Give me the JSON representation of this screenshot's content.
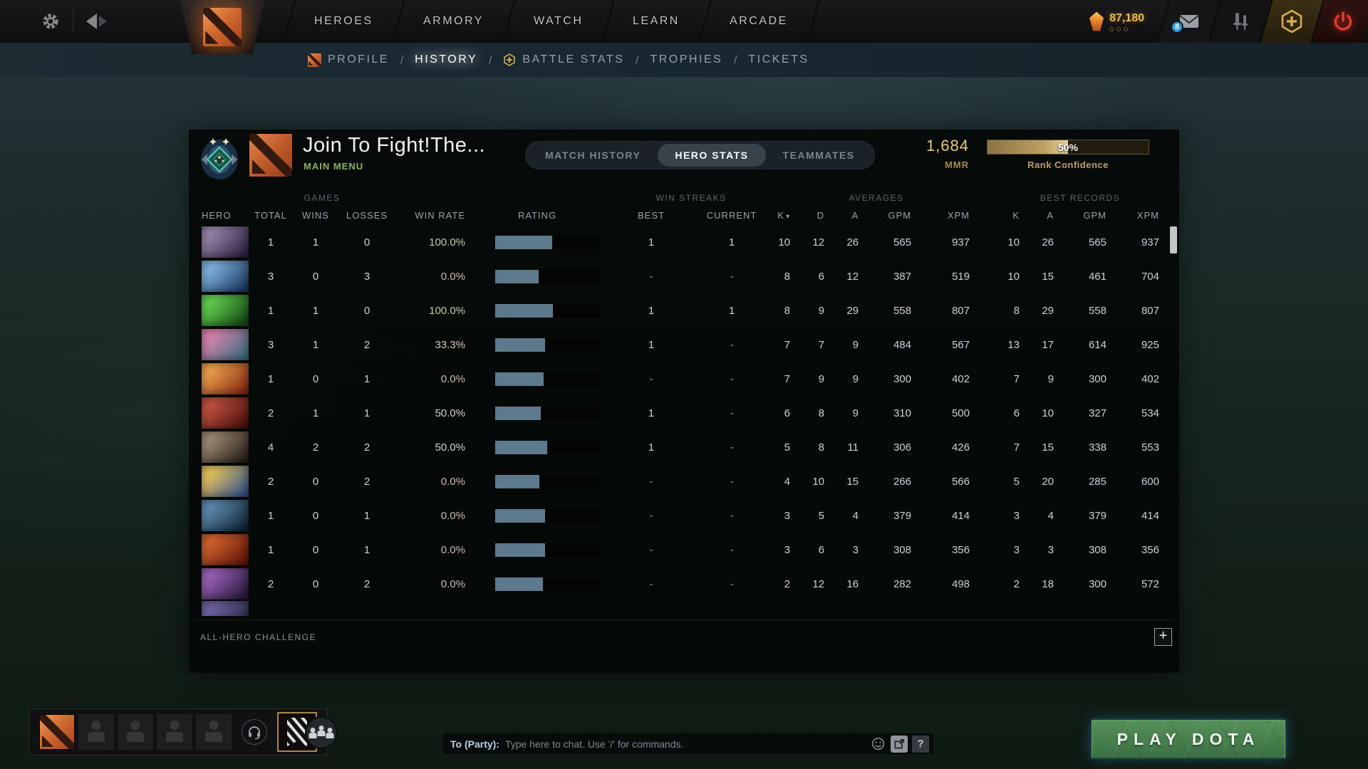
{
  "topbar": {
    "nav": [
      "HEROES",
      "ARMORY",
      "WATCH",
      "LEARN",
      "ARCADE"
    ],
    "currency_value": "87,180",
    "mail_badge": "8"
  },
  "subnav": {
    "separator": "/",
    "items": [
      "PROFILE",
      "HISTORY",
      "BATTLE STATS",
      "TROPHIES",
      "TICKETS"
    ]
  },
  "profile": {
    "title": "Join To Fight!The...",
    "subtitle": "MAIN MENU",
    "tabs": [
      "MATCH HISTORY",
      "HERO STATS",
      "TEAMMATES"
    ],
    "active_tab": "HERO STATS",
    "mmr_value": "1,684",
    "mmr_label": "MMR",
    "confidence_pct": "50%",
    "confidence_fill": 50,
    "confidence_label": "Rank Confidence",
    "accent_gold": "#ecc878",
    "rating_bar_color": "#5d7a8c"
  },
  "table": {
    "groups": {
      "games": "GAMES",
      "win_streaks": "WIN STREAKS",
      "averages": "AVERAGES",
      "best_records": "BEST RECORDS"
    },
    "columns": {
      "hero": "HERO",
      "total": "TOTAL",
      "wins": "WINS",
      "losses": "LOSSES",
      "win_rate": "WIN RATE",
      "rating": "RATING",
      "best": "BEST",
      "current": "CURRENT",
      "k": "K",
      "d": "D",
      "a": "A",
      "gpm": "GPM",
      "xpm": "XPM",
      "k2": "K",
      "a2": "A",
      "gpm2": "GPM",
      "xpm2": "XPM"
    },
    "sort_column": "K",
    "rows": [
      {
        "total": "1",
        "wins": "1",
        "losses": "0",
        "win_rate": "100.0%",
        "win_rate_color": "#b4d1a0",
        "rating_fill": 54,
        "best": "1",
        "current": "1",
        "k": "10",
        "d": "12",
        "a": "26",
        "gpm": "565",
        "xpm": "937",
        "bk": "10",
        "ba": "26",
        "bgpm": "565",
        "bxpm": "937",
        "portrait": [
          "#9a86a8",
          "#2e2344"
        ]
      },
      {
        "total": "3",
        "wins": "0",
        "losses": "3",
        "win_rate": "0.0%",
        "win_rate_color": "#d2b6b0",
        "rating_fill": 41,
        "best": "-",
        "current": "-",
        "k": "8",
        "d": "6",
        "a": "12",
        "gpm": "387",
        "xpm": "519",
        "bk": "10",
        "ba": "15",
        "bgpm": "461",
        "bxpm": "704",
        "portrait": [
          "#7fb4e2",
          "#1d3c62"
        ]
      },
      {
        "total": "1",
        "wins": "1",
        "losses": "0",
        "win_rate": "100.0%",
        "win_rate_color": "#b4d1a0",
        "rating_fill": 55,
        "best": "1",
        "current": "1",
        "k": "8",
        "d": "9",
        "a": "29",
        "gpm": "558",
        "xpm": "807",
        "bk": "8",
        "ba": "29",
        "bgpm": "558",
        "bxpm": "807",
        "portrait": [
          "#63d24e",
          "#174a16"
        ]
      },
      {
        "total": "3",
        "wins": "1",
        "losses": "2",
        "win_rate": "33.3%",
        "win_rate_color": "#d5cba4",
        "rating_fill": 47,
        "best": "1",
        "current": "-",
        "k": "7",
        "d": "7",
        "a": "9",
        "gpm": "484",
        "xpm": "567",
        "bk": "13",
        "ba": "17",
        "bgpm": "614",
        "bxpm": "925",
        "portrait": [
          "#d884ae",
          "#3f6f80"
        ]
      },
      {
        "total": "1",
        "wins": "0",
        "losses": "1",
        "win_rate": "0.0%",
        "win_rate_color": "#d2b6b0",
        "rating_fill": 46,
        "best": "-",
        "current": "-",
        "k": "7",
        "d": "9",
        "a": "9",
        "gpm": "300",
        "xpm": "402",
        "bk": "7",
        "ba": "9",
        "bgpm": "300",
        "bxpm": "402",
        "portrait": [
          "#eda04e",
          "#8c2c14"
        ]
      },
      {
        "total": "2",
        "wins": "1",
        "losses": "1",
        "win_rate": "50.0%",
        "win_rate_color": "#ccd2cd",
        "rating_fill": 43,
        "best": "1",
        "current": "-",
        "k": "6",
        "d": "8",
        "a": "9",
        "gpm": "310",
        "xpm": "500",
        "bk": "6",
        "ba": "10",
        "bgpm": "327",
        "bxpm": "534",
        "portrait": [
          "#c25040",
          "#4e130c"
        ]
      },
      {
        "total": "4",
        "wins": "2",
        "losses": "2",
        "win_rate": "50.0%",
        "win_rate_color": "#ccd2cd",
        "rating_fill": 49,
        "best": "1",
        "current": "-",
        "k": "5",
        "d": "8",
        "a": "11",
        "gpm": "306",
        "xpm": "426",
        "bk": "7",
        "ba": "15",
        "bgpm": "338",
        "bxpm": "553",
        "portrait": [
          "#a08a74",
          "#2a211a"
        ]
      },
      {
        "total": "2",
        "wins": "0",
        "losses": "2",
        "win_rate": "0.0%",
        "win_rate_color": "#d2b6b0",
        "rating_fill": 42,
        "best": "-",
        "current": "-",
        "k": "4",
        "d": "10",
        "a": "15",
        "gpm": "266",
        "xpm": "566",
        "bk": "5",
        "ba": "20",
        "bgpm": "285",
        "bxpm": "600",
        "portrait": [
          "#e6c35e",
          "#35568a"
        ]
      },
      {
        "total": "1",
        "wins": "0",
        "losses": "1",
        "win_rate": "0.0%",
        "win_rate_color": "#d2b6b0",
        "rating_fill": 47,
        "best": "-",
        "current": "-",
        "k": "3",
        "d": "5",
        "a": "4",
        "gpm": "379",
        "xpm": "414",
        "bk": "3",
        "ba": "4",
        "bgpm": "379",
        "bxpm": "414",
        "portrait": [
          "#5e8cb0",
          "#132638"
        ]
      },
      {
        "total": "1",
        "wins": "0",
        "losses": "1",
        "win_rate": "0.0%",
        "win_rate_color": "#d2b6b0",
        "rating_fill": 47,
        "best": "-",
        "current": "-",
        "k": "3",
        "d": "6",
        "a": "3",
        "gpm": "308",
        "xpm": "356",
        "bk": "3",
        "ba": "3",
        "bgpm": "308",
        "bxpm": "356",
        "portrait": [
          "#d2642e",
          "#66160a"
        ]
      },
      {
        "total": "2",
        "wins": "0",
        "losses": "2",
        "win_rate": "0.0%",
        "win_rate_color": "#d2b6b0",
        "rating_fill": 45,
        "best": "-",
        "current": "-",
        "k": "2",
        "d": "12",
        "a": "16",
        "gpm": "282",
        "xpm": "498",
        "bk": "2",
        "ba": "18",
        "bgpm": "300",
        "bxpm": "572",
        "portrait": [
          "#9a62b8",
          "#2c1a3e"
        ]
      }
    ],
    "partial_row_portrait": [
      "#7064a2",
      "#232041"
    ],
    "footer_label": "ALL-HERO CHALLENGE",
    "add_button": "+"
  },
  "bottombar": {
    "chat_to": "To (Party):",
    "chat_placeholder": "Type here to chat. Use '/' for commands.",
    "help_label": "?",
    "play_label": "PLAY DOTA"
  }
}
